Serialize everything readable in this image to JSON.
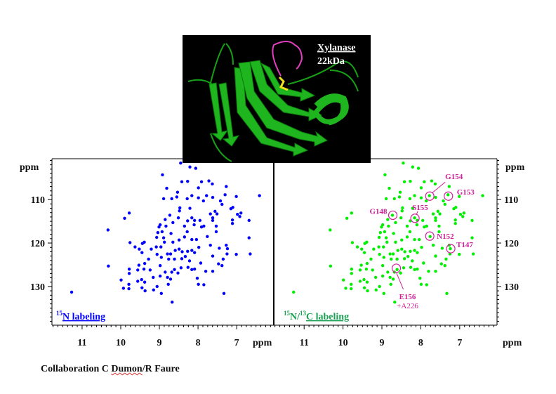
{
  "protein": {
    "name": "Xylanase",
    "mass": "22kDa"
  },
  "caption": {
    "prefix": "Collaboration C ",
    "underlined": "Dumon",
    "suffix": "/R Faure"
  },
  "colors": {
    "n15": "#0000ff",
    "n15c13": "#00ee00",
    "annotation": "#d0209a",
    "label_green": "#18a050"
  },
  "chart_data": [
    {
      "type": "scatter",
      "title_sup": "15",
      "title": "N labeling",
      "xlabel": "ppm",
      "ylabel": "ppm",
      "xlim": [
        11.78,
        6.04
      ],
      "ylim": [
        100.6,
        138.9
      ],
      "xticks": [
        "11",
        "10",
        "9",
        "8",
        "7"
      ],
      "yticks": [
        "110",
        "120",
        "130"
      ],
      "color": "#0000ff"
    },
    {
      "type": "scatter",
      "title_sup1": "15",
      "title_mid": "N/",
      "title_sup2": "13",
      "title": "C labeling",
      "xlabel": "ppm",
      "ylabel": "ppm",
      "xlim": [
        11.78,
        6.04
      ],
      "ylim": [
        100.6,
        138.9
      ],
      "xticks": [
        "11",
        "10",
        "9",
        "8",
        "7"
      ],
      "yticks": [
        "110",
        "120",
        "130"
      ],
      "color": "#00ee00",
      "annotations": [
        {
          "label": "G154",
          "x": 7.77,
          "y": 109.2
        },
        {
          "label": "G153",
          "x": 7.29,
          "y": 109.2
        },
        {
          "label": "G148",
          "x": 8.72,
          "y": 113.6
        },
        {
          "label": "S155",
          "x": 8.15,
          "y": 114.3
        },
        {
          "label": "N152",
          "x": 7.77,
          "y": 118.4
        },
        {
          "label": "T147",
          "x": 7.23,
          "y": 121.3
        },
        {
          "label": "E156",
          "sublabel": "+A226",
          "x": 8.63,
          "y": 125.8
        }
      ]
    }
  ],
  "peaks": [
    [
      8.45,
      101.6
    ],
    [
      8.21,
      102.5
    ],
    [
      8.06,
      102.8
    ],
    [
      8.92,
      104.3
    ],
    [
      8.81,
      107.4
    ],
    [
      8.42,
      105.9
    ],
    [
      8.27,
      105.8
    ],
    [
      7.91,
      105.9
    ],
    [
      7.72,
      105.7
    ],
    [
      7.63,
      106.4
    ],
    [
      7.27,
      107.0
    ],
    [
      7.99,
      107.3
    ],
    [
      8.53,
      108.3
    ],
    [
      8.55,
      109.4
    ],
    [
      8.89,
      109.8
    ],
    [
      8.68,
      109.8
    ],
    [
      8.28,
      109.8
    ],
    [
      8.16,
      109.1
    ],
    [
      7.99,
      109.6
    ],
    [
      7.78,
      109.1
    ],
    [
      7.62,
      109.5
    ],
    [
      7.3,
      108.9
    ],
    [
      7.01,
      109.3
    ],
    [
      7.86,
      110.3
    ],
    [
      7.42,
      110.3
    ],
    [
      7.38,
      111.1
    ],
    [
      7.1,
      111.8
    ],
    [
      7.15,
      112.1
    ],
    [
      8.47,
      111.9
    ],
    [
      8.48,
      112.6
    ],
    [
      8.21,
      112.0
    ],
    [
      9.78,
      113.1
    ],
    [
      9.9,
      114.3
    ],
    [
      10.33,
      117.0
    ],
    [
      10.32,
      125.3
    ],
    [
      11.27,
      131.3
    ],
    [
      8.73,
      113.6
    ],
    [
      8.85,
      114.6
    ],
    [
      8.51,
      114.2
    ],
    [
      8.27,
      114.9
    ],
    [
      8.16,
      114.2
    ],
    [
      8.09,
      114.8
    ],
    [
      7.95,
      114.8
    ],
    [
      8.1,
      115.8
    ],
    [
      8.65,
      115.3
    ],
    [
      8.98,
      115.8
    ],
    [
      9.01,
      116.3
    ],
    [
      8.83,
      116.1
    ],
    [
      8.35,
      116.1
    ],
    [
      8.28,
      117.4
    ],
    [
      8.7,
      117.8
    ],
    [
      9.04,
      117.6
    ],
    [
      8.93,
      117.4
    ],
    [
      7.91,
      116.3
    ],
    [
      7.85,
      116.1
    ],
    [
      7.68,
      113.3
    ],
    [
      7.62,
      114.2
    ],
    [
      7.56,
      112.7
    ],
    [
      7.51,
      113.3
    ],
    [
      7.62,
      114.8
    ],
    [
      7.53,
      116.1
    ],
    [
      7.53,
      117.4
    ],
    [
      7.11,
      115.5
    ],
    [
      7.11,
      114.7
    ],
    [
      6.98,
      113.4
    ],
    [
      6.92,
      113.9
    ],
    [
      6.89,
      113.1
    ],
    [
      6.68,
      114.8
    ],
    [
      6.68,
      118.8
    ],
    [
      6.65,
      122.5
    ],
    [
      7.01,
      122.6
    ],
    [
      7.24,
      121.3
    ],
    [
      7.25,
      122.5
    ],
    [
      7.27,
      120.5
    ],
    [
      7.45,
      121.2
    ],
    [
      7.68,
      120.5
    ],
    [
      7.76,
      118.5
    ],
    [
      8.04,
      119.2
    ],
    [
      8.16,
      119.2
    ],
    [
      8.35,
      118.6
    ],
    [
      8.49,
      119.3
    ],
    [
      8.65,
      119.8
    ],
    [
      8.87,
      119.8
    ],
    [
      8.89,
      118.8
    ],
    [
      9.07,
      118.7
    ],
    [
      9.39,
      119.8
    ],
    [
      9.44,
      120.1
    ],
    [
      9.63,
      120.9
    ],
    [
      9.76,
      119.9
    ],
    [
      9.52,
      121.4
    ],
    [
      9.45,
      122.2
    ],
    [
      9.21,
      121.4
    ],
    [
      9.08,
      120.9
    ],
    [
      8.96,
      120.9
    ],
    [
      9.06,
      122.6
    ],
    [
      8.59,
      121.7
    ],
    [
      8.49,
      121.4
    ],
    [
      8.41,
      122.0
    ],
    [
      8.27,
      121.9
    ],
    [
      8.16,
      121.7
    ],
    [
      8.09,
      122.2
    ],
    [
      7.98,
      121.0
    ],
    [
      8.79,
      122.5
    ],
    [
      8.71,
      122.5
    ],
    [
      8.95,
      123.3
    ],
    [
      8.76,
      123.7
    ],
    [
      8.61,
      123.7
    ],
    [
      8.42,
      123.6
    ],
    [
      8.33,
      123.1
    ],
    [
      8.22,
      124.1
    ],
    [
      8.26,
      125.6
    ],
    [
      7.93,
      124.6
    ],
    [
      7.62,
      123.0
    ],
    [
      7.35,
      123.7
    ],
    [
      7.38,
      125.2
    ],
    [
      7.47,
      124.8
    ],
    [
      7.62,
      126.5
    ],
    [
      7.8,
      126.5
    ],
    [
      8.09,
      126.0
    ],
    [
      8.16,
      126.1
    ],
    [
      8.44,
      125.7
    ],
    [
      8.61,
      126.1
    ],
    [
      8.52,
      126.9
    ],
    [
      8.68,
      126.7
    ],
    [
      8.85,
      126.7
    ],
    [
      8.98,
      125.2
    ],
    [
      8.98,
      127.6
    ],
    [
      8.79,
      127.9
    ],
    [
      8.71,
      128.3
    ],
    [
      9.16,
      127.9
    ],
    [
      9.24,
      126.2
    ],
    [
      9.4,
      126.0
    ],
    [
      9.53,
      125.1
    ],
    [
      9.56,
      126.2
    ],
    [
      9.28,
      123.7
    ],
    [
      9.38,
      124.7
    ],
    [
      9.78,
      126.0
    ],
    [
      9.78,
      127.0
    ],
    [
      9.79,
      129.5
    ],
    [
      9.79,
      130.5
    ],
    [
      9.99,
      128.5
    ],
    [
      9.93,
      130.4
    ],
    [
      9.56,
      128.8
    ],
    [
      9.46,
      128.4
    ],
    [
      9.38,
      129.0
    ],
    [
      9.45,
      130.3
    ],
    [
      9.37,
      131.0
    ],
    [
      9.15,
      130.8
    ],
    [
      9.06,
      130.0
    ],
    [
      8.95,
      131.6
    ],
    [
      8.77,
      129.5
    ],
    [
      8.67,
      133.6
    ],
    [
      8.02,
      128.1
    ],
    [
      7.99,
      129.5
    ],
    [
      7.85,
      129.6
    ],
    [
      7.33,
      131.6
    ],
    [
      6.41,
      109.1
    ]
  ]
}
